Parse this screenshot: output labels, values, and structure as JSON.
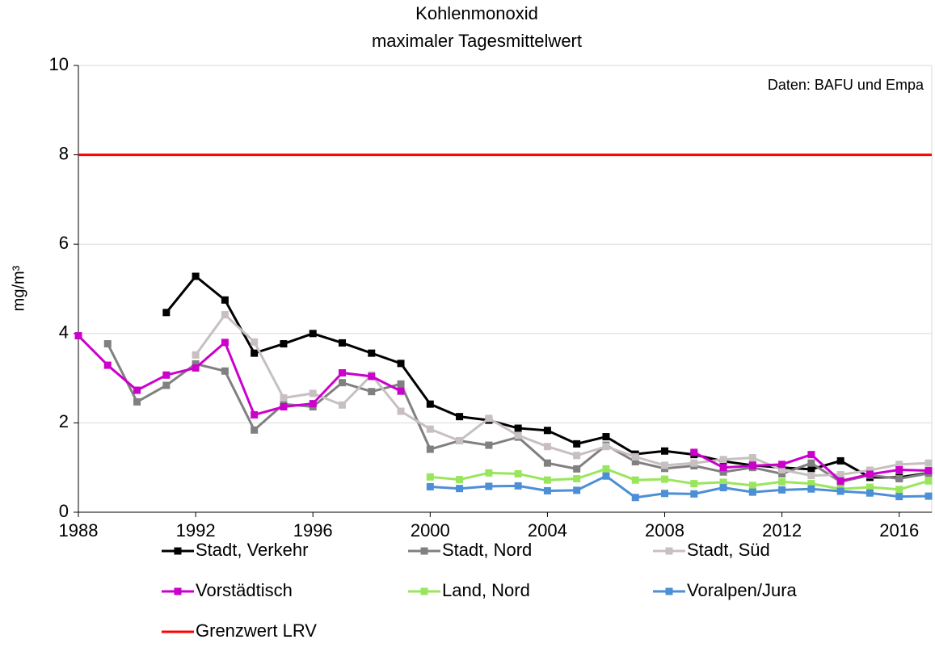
{
  "chart_data": {
    "type": "line",
    "title": [
      "Kohlenmonoxid",
      "maximaler Tagesmittelwert"
    ],
    "y_label": "mg/m³",
    "annotation": "Daten: BAFU und Empa",
    "x": [
      1988,
      1989,
      1990,
      1991,
      1992,
      1993,
      1994,
      1995,
      1996,
      1997,
      1998,
      1999,
      2000,
      2001,
      2002,
      2003,
      2004,
      2005,
      2006,
      2007,
      2008,
      2009,
      2010,
      2011,
      2012,
      2013,
      2014,
      2015,
      2016,
      2017
    ],
    "xlim": [
      1988,
      2017
    ],
    "xticks": [
      1988,
      1992,
      1996,
      2000,
      2004,
      2008,
      2012,
      2016
    ],
    "ylim": [
      0,
      10
    ],
    "yticks": [
      0,
      2,
      4,
      6,
      8,
      10
    ],
    "grid": true,
    "series": [
      {
        "name": "Stadt, Verkehr",
        "color": "#000000",
        "values": [
          null,
          null,
          null,
          4.47,
          5.28,
          4.75,
          3.56,
          3.77,
          4.0,
          3.79,
          3.56,
          3.33,
          2.42,
          2.14,
          2.06,
          1.88,
          1.83,
          1.53,
          1.69,
          1.3,
          1.37,
          1.29,
          1.14,
          1.05,
          1.0,
          0.96,
          1.15,
          0.78,
          0.78,
          0.88
        ]
      },
      {
        "name": "Stadt, Nord",
        "color": "#808080",
        "values": [
          null,
          3.77,
          2.47,
          2.84,
          3.32,
          3.16,
          1.84,
          2.42,
          2.36,
          2.9,
          2.7,
          2.87,
          1.41,
          1.6,
          1.5,
          1.68,
          1.1,
          0.97,
          1.5,
          1.13,
          0.98,
          1.04,
          0.9,
          1.0,
          0.86,
          1.1,
          0.68,
          0.83,
          0.75,
          0.87
        ]
      },
      {
        "name": "Stadt, Süd",
        "color": "#c8c0c0",
        "values": [
          null,
          null,
          null,
          null,
          3.52,
          4.42,
          3.81,
          2.56,
          2.66,
          2.4,
          3.07,
          2.26,
          1.86,
          1.6,
          2.1,
          1.72,
          1.47,
          1.27,
          1.47,
          1.24,
          1.05,
          1.1,
          1.18,
          1.22,
          0.95,
          0.82,
          0.84,
          0.94,
          1.07,
          1.1
        ]
      },
      {
        "name": "Vorstädtisch",
        "color": "#cc00cc",
        "values": [
          3.95,
          3.29,
          2.73,
          3.07,
          3.23,
          3.8,
          2.18,
          2.36,
          2.43,
          3.12,
          3.04,
          2.71,
          null,
          null,
          null,
          null,
          null,
          null,
          null,
          null,
          null,
          1.34,
          1.0,
          1.04,
          1.07,
          1.29,
          0.7,
          0.85,
          0.95,
          0.93
        ]
      },
      {
        "name": "Land, Nord",
        "color": "#99e65c",
        "values": [
          null,
          null,
          null,
          null,
          null,
          null,
          null,
          null,
          null,
          null,
          null,
          null,
          0.79,
          0.73,
          0.88,
          0.86,
          0.72,
          0.75,
          0.97,
          0.72,
          0.74,
          0.64,
          0.67,
          0.6,
          0.68,
          0.64,
          0.52,
          0.56,
          0.51,
          0.7
        ]
      },
      {
        "name": "Voralpen/Jura",
        "color": "#4d8fd6",
        "values": [
          null,
          null,
          null,
          null,
          null,
          null,
          null,
          null,
          null,
          null,
          null,
          null,
          0.57,
          0.53,
          0.58,
          0.59,
          0.48,
          0.49,
          0.81,
          0.33,
          0.42,
          0.41,
          0.55,
          0.45,
          0.5,
          0.52,
          0.47,
          0.43,
          0.35,
          0.36
        ]
      }
    ],
    "reference_line": {
      "name": "Grenzwert LRV",
      "color": "#ff0000",
      "value": 8
    }
  }
}
